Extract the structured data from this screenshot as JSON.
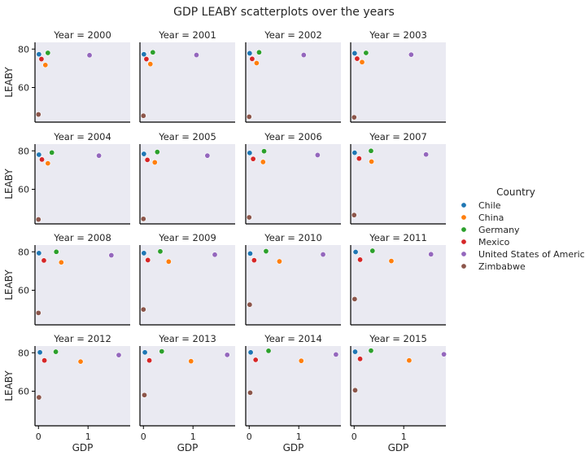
{
  "title": "GDP LEABY scatterplots over the years",
  "chart_data": {
    "type": "scatter",
    "title": "GDP LEABY scatterplots over the years",
    "xlabel": "GDP",
    "ylabel": "LEABY",
    "facet_label_prefix": "Year = ",
    "xlim": [
      -0.07,
      1.85
    ],
    "ylim": [
      42,
      83.5
    ],
    "xticks": [
      0,
      1
    ],
    "yticks": [
      60,
      80
    ],
    "grid": false,
    "legend_title": "Country",
    "legend_position": "right",
    "series": [
      {
        "name": "Chile",
        "color": "#1f77b4"
      },
      {
        "name": "China",
        "color": "#ff7f0e"
      },
      {
        "name": "Germany",
        "color": "#2ca02c"
      },
      {
        "name": "Mexico",
        "color": "#d62728"
      },
      {
        "name": "United States of America",
        "color": "#9467bd"
      },
      {
        "name": "Zimbabwe",
        "color": "#8c564b"
      }
    ],
    "facets": [
      {
        "year": "2000",
        "points": [
          [
            0.01,
            77.3
          ],
          [
            0.14,
            71.7
          ],
          [
            0.19,
            78.0
          ],
          [
            0.06,
            74.8
          ],
          [
            1.03,
            76.8
          ],
          [
            0.0,
            46.0
          ]
        ]
      },
      {
        "year": "2001",
        "points": [
          [
            0.01,
            77.3
          ],
          [
            0.14,
            72.2
          ],
          [
            0.19,
            78.3
          ],
          [
            0.06,
            74.8
          ],
          [
            1.07,
            76.9
          ],
          [
            0.0,
            45.3
          ]
        ]
      },
      {
        "year": "2002",
        "points": [
          [
            0.01,
            77.8
          ],
          [
            0.15,
            72.7
          ],
          [
            0.2,
            78.3
          ],
          [
            0.06,
            74.9
          ],
          [
            1.1,
            76.9
          ],
          [
            0.0,
            44.8
          ]
        ]
      },
      {
        "year": "2003",
        "points": [
          [
            0.01,
            77.8
          ],
          [
            0.16,
            73.2
          ],
          [
            0.24,
            78.0
          ],
          [
            0.06,
            75.0
          ],
          [
            1.15,
            77.1
          ],
          [
            0.0,
            44.5
          ]
        ]
      },
      {
        "year": "2004",
        "points": [
          [
            0.01,
            78.0
          ],
          [
            0.19,
            73.5
          ],
          [
            0.27,
            79.1
          ],
          [
            0.07,
            75.5
          ],
          [
            1.22,
            77.5
          ],
          [
            0.0,
            44.3
          ]
        ]
      },
      {
        "year": "2005",
        "points": [
          [
            0.01,
            78.4
          ],
          [
            0.23,
            74.0
          ],
          [
            0.28,
            79.4
          ],
          [
            0.08,
            75.3
          ],
          [
            1.29,
            77.5
          ],
          [
            0.0,
            44.6
          ]
        ]
      },
      {
        "year": "2006",
        "points": [
          [
            0.01,
            78.9
          ],
          [
            0.28,
            74.2
          ],
          [
            0.3,
            79.8
          ],
          [
            0.08,
            75.8
          ],
          [
            1.38,
            77.8
          ],
          [
            0.0,
            45.4
          ]
        ]
      },
      {
        "year": "2007",
        "points": [
          [
            0.01,
            79.0
          ],
          [
            0.35,
            74.4
          ],
          [
            0.34,
            80.0
          ],
          [
            0.1,
            76.0
          ],
          [
            1.45,
            78.1
          ],
          [
            0.0,
            46.6
          ]
        ]
      },
      {
        "year": "2008",
        "points": [
          [
            0.01,
            79.3
          ],
          [
            0.46,
            74.5
          ],
          [
            0.36,
            80.0
          ],
          [
            0.11,
            75.5
          ],
          [
            1.47,
            78.2
          ],
          [
            0.0,
            48.2
          ]
        ]
      },
      {
        "year": "2009",
        "points": [
          [
            0.01,
            79.3
          ],
          [
            0.51,
            74.9
          ],
          [
            0.34,
            80.2
          ],
          [
            0.09,
            75.7
          ],
          [
            1.44,
            78.5
          ],
          [
            0.0,
            50.0
          ]
        ]
      },
      {
        "year": "2010",
        "points": [
          [
            0.02,
            79.1
          ],
          [
            0.61,
            75.0
          ],
          [
            0.34,
            80.3
          ],
          [
            0.1,
            75.6
          ],
          [
            1.49,
            78.6
          ],
          [
            0.01,
            52.5
          ]
        ]
      },
      {
        "year": "2011",
        "points": [
          [
            0.03,
            79.9
          ],
          [
            0.75,
            75.2
          ],
          [
            0.37,
            80.5
          ],
          [
            0.12,
            75.9
          ],
          [
            1.55,
            78.7
          ],
          [
            0.01,
            55.4
          ]
        ]
      },
      {
        "year": "2012",
        "points": [
          [
            0.03,
            80.2
          ],
          [
            0.85,
            75.4
          ],
          [
            0.35,
            80.5
          ],
          [
            0.12,
            76.0
          ],
          [
            1.62,
            78.8
          ],
          [
            0.01,
            56.8
          ]
        ]
      },
      {
        "year": "2013",
        "points": [
          [
            0.03,
            80.2
          ],
          [
            0.96,
            75.6
          ],
          [
            0.37,
            80.7
          ],
          [
            0.12,
            76.0
          ],
          [
            1.69,
            78.9
          ],
          [
            0.02,
            58.0
          ]
        ]
      },
      {
        "year": "2014",
        "points": [
          [
            0.03,
            80.2
          ],
          [
            1.05,
            75.8
          ],
          [
            0.39,
            81.0
          ],
          [
            0.13,
            76.3
          ],
          [
            1.75,
            79.1
          ],
          [
            0.02,
            59.2
          ]
        ]
      },
      {
        "year": "2015",
        "points": [
          [
            0.02,
            80.5
          ],
          [
            1.11,
            76.0
          ],
          [
            0.34,
            81.1
          ],
          [
            0.12,
            76.8
          ],
          [
            1.81,
            79.2
          ],
          [
            0.02,
            60.5
          ]
        ]
      }
    ]
  }
}
